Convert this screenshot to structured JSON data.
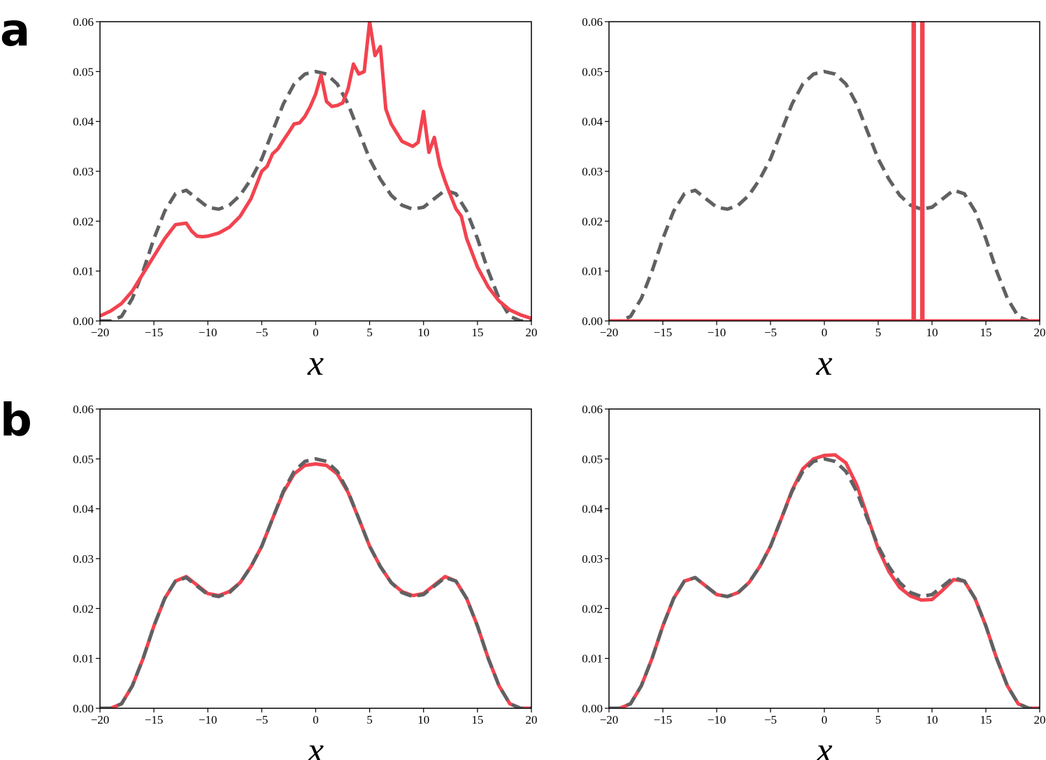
{
  "panel_labels": {
    "a": "a",
    "b": "b"
  },
  "colors": {
    "model": "#f2434f",
    "reference": "#5f6163",
    "axis": "#000000"
  },
  "chart_data": [
    {
      "id": "a-left",
      "panel": "a",
      "type": "line",
      "xlabel": "x",
      "ylabel": "",
      "xlim": [
        -20,
        20
      ],
      "ylim": [
        0,
        0.06
      ],
      "xticks": [
        -20,
        -15,
        -10,
        -5,
        0,
        5,
        10,
        15,
        20
      ],
      "yticks": [
        0.0,
        0.01,
        0.02,
        0.03,
        0.04,
        0.05,
        0.06
      ],
      "grid": false,
      "series": [
        {
          "style": "dashed",
          "color": "#5f6163",
          "x": [
            -20,
            -19,
            -18,
            -17,
            -16,
            -15,
            -14,
            -13,
            -12,
            -11,
            -10,
            -9,
            -8,
            -7,
            -6,
            -5,
            -4,
            -3,
            -2,
            -1,
            0,
            1,
            2,
            3,
            4,
            5,
            6,
            7,
            8,
            9,
            10,
            11,
            12,
            13,
            14,
            15,
            16,
            17,
            18,
            19,
            20
          ],
          "y": [
            0.0,
            0.0,
            0.0009,
            0.0045,
            0.01,
            0.0165,
            0.022,
            0.0255,
            0.0262,
            0.0245,
            0.0228,
            0.0224,
            0.0232,
            0.0252,
            0.0284,
            0.0325,
            0.038,
            0.0435,
            0.0475,
            0.0495,
            0.05,
            0.0495,
            0.0475,
            0.0435,
            0.038,
            0.0325,
            0.0284,
            0.0252,
            0.0232,
            0.0224,
            0.0228,
            0.0245,
            0.0262,
            0.0255,
            0.022,
            0.0165,
            0.01,
            0.0045,
            0.0009,
            0.0,
            0.0
          ]
        },
        {
          "style": "solid",
          "color": "#f2434f",
          "x": [
            -20,
            -19,
            -18,
            -17,
            -16,
            -15,
            -14,
            -13,
            -12,
            -11.5,
            -11,
            -10.5,
            -10,
            -9,
            -8,
            -7,
            -6,
            -5,
            -4.5,
            -4,
            -3.5,
            -3,
            -2.5,
            -2,
            -1.5,
            -1,
            -0.5,
            0,
            0.5,
            1,
            1.5,
            2,
            2.5,
            3,
            3.5,
            4,
            4.5,
            5,
            5.5,
            6,
            6.5,
            7,
            8,
            9,
            9.5,
            10,
            10.5,
            11,
            11.5,
            12,
            12.5,
            13,
            13.5,
            14,
            15,
            16,
            17,
            18,
            19,
            20
          ],
          "y": [
            0.001,
            0.002,
            0.0035,
            0.006,
            0.0095,
            0.013,
            0.0165,
            0.0193,
            0.0196,
            0.018,
            0.017,
            0.0169,
            0.017,
            0.0176,
            0.0188,
            0.021,
            0.0245,
            0.03,
            0.031,
            0.0335,
            0.0345,
            0.0362,
            0.0378,
            0.0395,
            0.0397,
            0.041,
            0.043,
            0.0455,
            0.0493,
            0.044,
            0.043,
            0.0432,
            0.0437,
            0.0465,
            0.0515,
            0.0495,
            0.05,
            0.06,
            0.0532,
            0.055,
            0.0425,
            0.0395,
            0.036,
            0.035,
            0.0358,
            0.042,
            0.0338,
            0.0368,
            0.0313,
            0.028,
            0.0252,
            0.0225,
            0.021,
            0.0165,
            0.0108,
            0.0068,
            0.004,
            0.0022,
            0.0012,
            0.0005
          ]
        }
      ]
    },
    {
      "id": "a-right",
      "panel": "a",
      "type": "line",
      "xlabel": "x",
      "ylabel": "",
      "xlim": [
        -20,
        20
      ],
      "ylim": [
        0,
        0.06
      ],
      "xticks": [
        -20,
        -15,
        -10,
        -5,
        0,
        5,
        10,
        15,
        20
      ],
      "yticks": [
        0.0,
        0.01,
        0.02,
        0.03,
        0.04,
        0.05,
        0.06
      ],
      "grid": false,
      "series": [
        {
          "style": "dashed",
          "color": "#5f6163",
          "x": [
            -20,
            -19,
            -18,
            -17,
            -16,
            -15,
            -14,
            -13,
            -12,
            -11,
            -10,
            -9,
            -8,
            -7,
            -6,
            -5,
            -4,
            -3,
            -2,
            -1,
            0,
            1,
            2,
            3,
            4,
            5,
            6,
            7,
            8,
            9,
            10,
            11,
            12,
            13,
            14,
            15,
            16,
            17,
            18,
            19,
            20
          ],
          "y": [
            0.0,
            0.0,
            0.0009,
            0.0045,
            0.01,
            0.0165,
            0.022,
            0.0255,
            0.0262,
            0.0245,
            0.0228,
            0.0224,
            0.0232,
            0.0252,
            0.0284,
            0.0325,
            0.038,
            0.0435,
            0.0475,
            0.0495,
            0.05,
            0.0495,
            0.0475,
            0.0435,
            0.038,
            0.0325,
            0.0284,
            0.0252,
            0.0232,
            0.0224,
            0.0228,
            0.0245,
            0.0262,
            0.0255,
            0.022,
            0.0165,
            0.01,
            0.0045,
            0.0009,
            0.0,
            0.0
          ]
        },
        {
          "style": "solid",
          "color": "#f2434f",
          "x": [
            -20,
            8.25,
            8.25,
            8.35,
            8.35,
            9.05,
            9.05,
            9.15,
            9.15,
            20
          ],
          "y": [
            0,
            0,
            0.08,
            0.08,
            0,
            0,
            0.08,
            0.08,
            0,
            0
          ]
        }
      ]
    },
    {
      "id": "b-left",
      "panel": "b",
      "type": "line",
      "xlabel": "x",
      "ylabel": "",
      "xlim": [
        -20,
        20
      ],
      "ylim": [
        0,
        0.06
      ],
      "xticks": [
        -20,
        -15,
        -10,
        -5,
        0,
        5,
        10,
        15,
        20
      ],
      "yticks": [
        0.0,
        0.01,
        0.02,
        0.03,
        0.04,
        0.05,
        0.06
      ],
      "grid": false,
      "series": [
        {
          "style": "solid",
          "color": "#f2434f",
          "x": [
            -20,
            -19,
            -18,
            -17,
            -16,
            -15,
            -14,
            -13,
            -12,
            -11,
            -10,
            -9,
            -8,
            -7,
            -6,
            -5,
            -4,
            -3,
            -2,
            -1,
            0,
            1,
            2,
            3,
            4,
            5,
            6,
            7,
            8,
            9,
            10,
            11,
            12,
            13,
            14,
            15,
            16,
            17,
            18,
            19,
            20
          ],
          "y": [
            0.0,
            0.0,
            0.0009,
            0.0045,
            0.01,
            0.0165,
            0.022,
            0.0255,
            0.0264,
            0.0247,
            0.023,
            0.0226,
            0.0234,
            0.0252,
            0.0284,
            0.0325,
            0.038,
            0.0433,
            0.047,
            0.0487,
            0.049,
            0.0487,
            0.047,
            0.0433,
            0.038,
            0.0325,
            0.0284,
            0.0252,
            0.0234,
            0.0226,
            0.023,
            0.0247,
            0.0264,
            0.0255,
            0.022,
            0.0165,
            0.01,
            0.0045,
            0.0009,
            0.0,
            0.0
          ]
        },
        {
          "style": "dashed",
          "color": "#5f6163",
          "x": [
            -20,
            -19,
            -18,
            -17,
            -16,
            -15,
            -14,
            -13,
            -12,
            -11,
            -10,
            -9,
            -8,
            -7,
            -6,
            -5,
            -4,
            -3,
            -2,
            -1,
            0,
            1,
            2,
            3,
            4,
            5,
            6,
            7,
            8,
            9,
            10,
            11,
            12,
            13,
            14,
            15,
            16,
            17,
            18,
            19,
            20
          ],
          "y": [
            0.0,
            0.0,
            0.0009,
            0.0045,
            0.01,
            0.0165,
            0.022,
            0.0255,
            0.0262,
            0.0245,
            0.0228,
            0.0224,
            0.0232,
            0.0252,
            0.0284,
            0.0325,
            0.038,
            0.0435,
            0.0475,
            0.0495,
            0.05,
            0.0495,
            0.0475,
            0.0435,
            0.038,
            0.0325,
            0.0284,
            0.0252,
            0.0232,
            0.0224,
            0.0228,
            0.0245,
            0.0262,
            0.0255,
            0.022,
            0.0165,
            0.01,
            0.0045,
            0.0009,
            0.0,
            0.0
          ]
        }
      ]
    },
    {
      "id": "b-right",
      "panel": "b",
      "type": "line",
      "xlabel": "x",
      "ylabel": "",
      "xlim": [
        -20,
        20
      ],
      "ylim": [
        0,
        0.06
      ],
      "xticks": [
        -20,
        -15,
        -10,
        -5,
        0,
        5,
        10,
        15,
        20
      ],
      "yticks": [
        0.0,
        0.01,
        0.02,
        0.03,
        0.04,
        0.05,
        0.06
      ],
      "grid": false,
      "series": [
        {
          "style": "solid",
          "color": "#f2434f",
          "x": [
            -20,
            -19,
            -18,
            -17,
            -16,
            -15,
            -14,
            -13,
            -12,
            -11,
            -10,
            -9,
            -8,
            -7,
            -6,
            -5,
            -4,
            -3,
            -2,
            -1,
            0,
            1,
            2,
            3,
            4,
            5,
            6,
            7,
            8,
            9,
            10,
            11,
            12,
            13,
            14,
            15,
            16,
            17,
            18,
            19,
            20
          ],
          "y": [
            0.0,
            0.0,
            0.0009,
            0.0045,
            0.01,
            0.0165,
            0.022,
            0.0255,
            0.0262,
            0.0245,
            0.0228,
            0.0224,
            0.0232,
            0.0252,
            0.0284,
            0.0325,
            0.038,
            0.0437,
            0.048,
            0.05,
            0.0507,
            0.0508,
            0.0492,
            0.0448,
            0.0385,
            0.032,
            0.0274,
            0.0242,
            0.0225,
            0.0217,
            0.0218,
            0.0237,
            0.0258,
            0.0255,
            0.022,
            0.0165,
            0.01,
            0.0045,
            0.0009,
            0.0,
            0.0
          ]
        },
        {
          "style": "dashed",
          "color": "#5f6163",
          "x": [
            -20,
            -19,
            -18,
            -17,
            -16,
            -15,
            -14,
            -13,
            -12,
            -11,
            -10,
            -9,
            -8,
            -7,
            -6,
            -5,
            -4,
            -3,
            -2,
            -1,
            0,
            1,
            2,
            3,
            4,
            5,
            6,
            7,
            8,
            9,
            10,
            11,
            12,
            13,
            14,
            15,
            16,
            17,
            18,
            19,
            20
          ],
          "y": [
            0.0,
            0.0,
            0.0009,
            0.0045,
            0.01,
            0.0165,
            0.022,
            0.0255,
            0.0262,
            0.0245,
            0.0228,
            0.0224,
            0.0232,
            0.0252,
            0.0284,
            0.0325,
            0.038,
            0.0435,
            0.0475,
            0.0495,
            0.05,
            0.0495,
            0.0475,
            0.0435,
            0.038,
            0.0325,
            0.0284,
            0.0252,
            0.0232,
            0.0224,
            0.0228,
            0.0245,
            0.0262,
            0.0255,
            0.022,
            0.0165,
            0.01,
            0.0045,
            0.0009,
            0.0,
            0.0
          ]
        }
      ]
    }
  ]
}
